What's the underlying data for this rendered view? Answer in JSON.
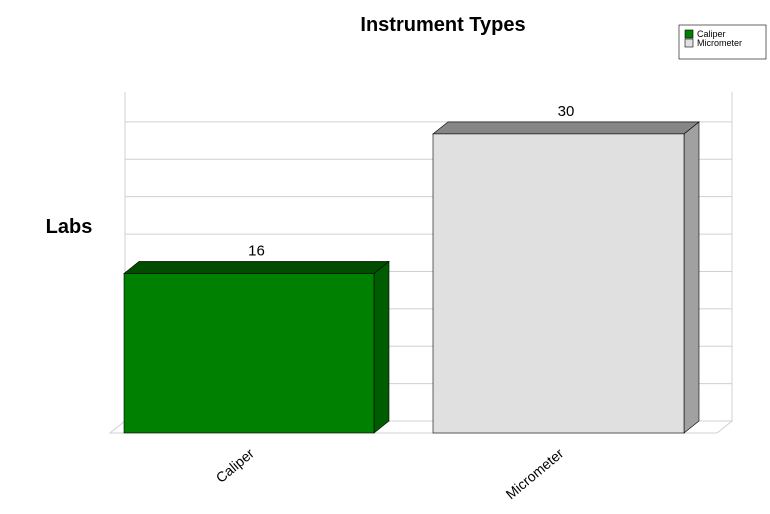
{
  "chart_data": {
    "type": "bar",
    "title": "Instrument Types",
    "xlabel": "",
    "ylabel": "Labs",
    "categories": [
      "Caliper",
      "Micrometer"
    ],
    "values": [
      16,
      30
    ],
    "data_labels": [
      "16",
      "30"
    ],
    "ylim": [
      0,
      33
    ],
    "grid": true,
    "legend": {
      "placement": "top-right",
      "entries": [
        "Caliper",
        "Micrometer"
      ]
    },
    "colors": {
      "Caliper": "#008000",
      "Micrometer": "#e0e0e0"
    }
  }
}
